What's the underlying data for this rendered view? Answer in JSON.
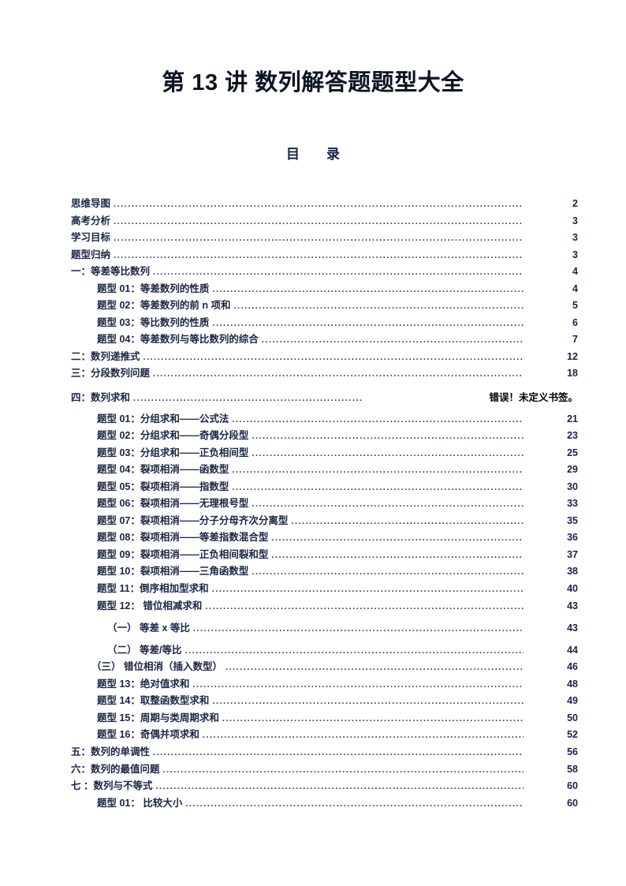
{
  "title": "第 13 讲 数列解答题题型大全",
  "toc_heading": "目　　录",
  "colors": {
    "text": "#1b2444",
    "title": "#0d1322",
    "error_text": "#000000",
    "background": "#ffffff"
  },
  "toc": {
    "items": [
      {
        "label": "思维导图",
        "page": "2",
        "level": 0
      },
      {
        "label": "高考分析",
        "page": "3",
        "level": 0
      },
      {
        "label": "学习目标",
        "page": "3",
        "level": 0
      },
      {
        "label": "题型归纳",
        "page": "3",
        "level": 0
      },
      {
        "label": "一：等差等比数列",
        "page": "4",
        "level": 0
      },
      {
        "label": "题型 01：等差数列的性质",
        "page": "4",
        "level": 1
      },
      {
        "label": "题型 02：等差数列的前 n 项和",
        "page": "5",
        "level": 1
      },
      {
        "label": "题型 03：等比数列的性质",
        "page": "6",
        "level": 1
      },
      {
        "label": "题型 04：等差数列与等比数列的综合",
        "page": "7",
        "level": 1
      },
      {
        "label": "二：数列递推式",
        "page": "12",
        "level": 0
      },
      {
        "label": "三：分段数列问题",
        "page": "18",
        "level": 0
      },
      {
        "label": "四：数列求和",
        "page": "错误！未定义书签。",
        "level": 0,
        "error": true,
        "gap": 9
      },
      {
        "label": "题型 01：分组求和——公式法",
        "page": "21",
        "level": 1,
        "gap": 5
      },
      {
        "label": "题型 02：分组求和——奇偶分段型",
        "page": "23",
        "level": 1
      },
      {
        "label": "题型 03：分组求和——正负相间型",
        "page": "25",
        "level": 1
      },
      {
        "label": "题型 04：裂项相消——函数型",
        "page": "29",
        "level": 1
      },
      {
        "label": "题型 05：裂项相消——指数型",
        "page": "30",
        "level": 1
      },
      {
        "label": "题型 06：裂项相消——无理根号型",
        "page": "33",
        "level": 1
      },
      {
        "label": "题型 07：裂项相消——分子分母齐次分离型",
        "page": "35",
        "level": 1
      },
      {
        "label": "题型 08：裂项相消——等差指数混合型",
        "page": "36",
        "level": 1
      },
      {
        "label": "题型 09：裂项相消——正负相间裂和型",
        "page": "37",
        "level": 1
      },
      {
        "label": "题型 10：裂项相消——三角函数型",
        "page": "38",
        "level": 1
      },
      {
        "label": "题型 11：倒序相加型求和",
        "page": "40",
        "level": 1
      },
      {
        "label": "题型 12： 错位相减求和",
        "page": "43",
        "level": 1
      },
      {
        "label": "（一） 等差 x 等比",
        "page": "43",
        "level": 2,
        "gap": 7
      },
      {
        "label": "（二） 等差/等比",
        "page": "44",
        "level": 2,
        "gap": 6
      },
      {
        "label": "（三） 错位相消（插入数型）",
        "page": "46",
        "level": 3
      },
      {
        "label": "题型 13：绝对值求和",
        "page": "48",
        "level": 1
      },
      {
        "label": "题型 14：取整函数型求和",
        "page": "49",
        "level": 1
      },
      {
        "label": "题型 15：周期与类周期求和",
        "page": "50",
        "level": 1
      },
      {
        "label": "题型 16：奇偶并项求和",
        "page": "52",
        "level": 1
      },
      {
        "label": "五：数列的单调性",
        "page": "56",
        "level": 0
      },
      {
        "label": "六：数列的最值问题",
        "page": "58",
        "level": 0
      },
      {
        "label": "七 ：数列与不等式",
        "page": "60",
        "level": 0
      },
      {
        "label": "题型 01： 比较大小",
        "page": "60",
        "level": 1
      }
    ]
  }
}
